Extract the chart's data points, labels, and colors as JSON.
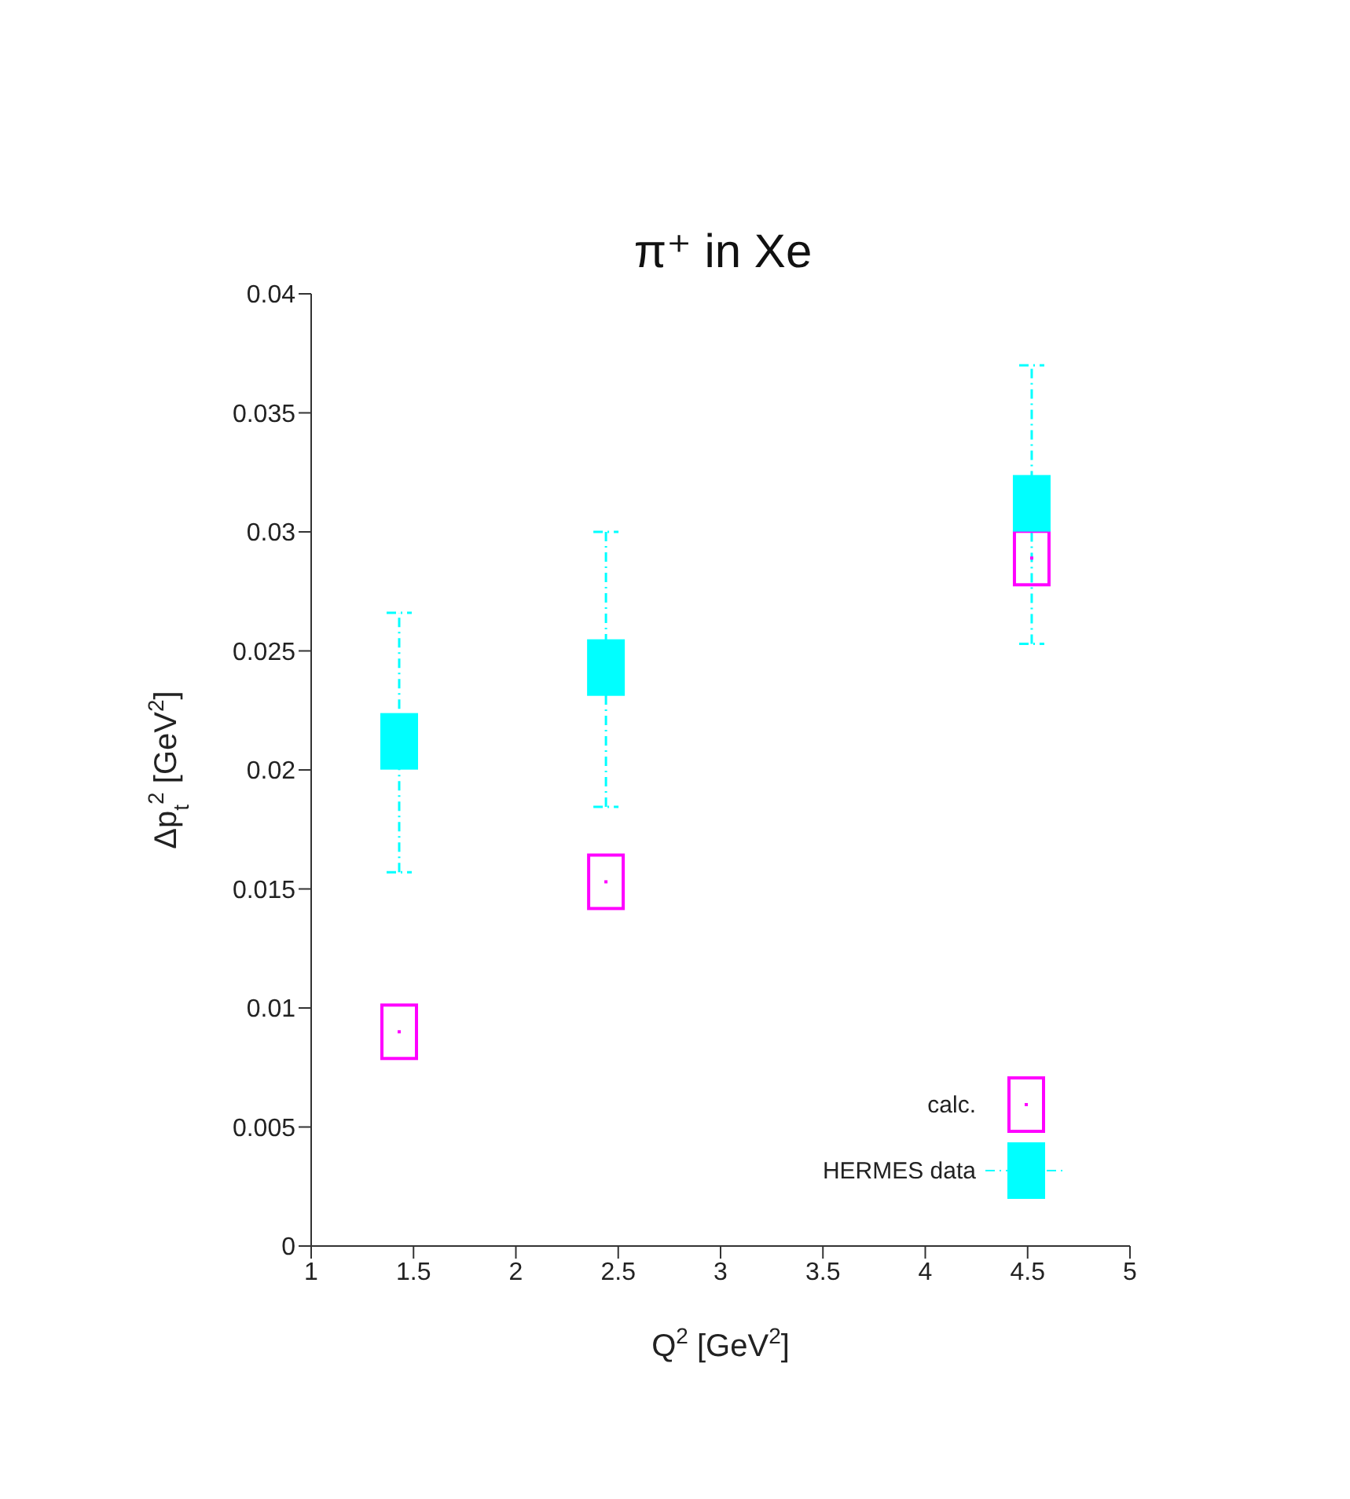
{
  "chart_data": {
    "type": "scatter",
    "title": "π⁺ in Xe",
    "xlabel": "Q$^{2}$ [GeV$^{2}$]",
    "ylabel": "Δp$_{t}$$^{2}$ [GeV$^{2}$]",
    "x": [
      1.43,
      2.44,
      4.52
    ],
    "series": [
      {
        "name": "calc.",
        "color": "#ff00ff",
        "marker": "square",
        "values": [
          0.009,
          0.0153,
          0.0289
        ]
      },
      {
        "name": "HERMES data",
        "color": "#00ffff",
        "marker": "square",
        "values": [
          0.0212,
          0.0243,
          0.0312
        ],
        "errors": [
          [
            0.0157,
            0.0266
          ],
          [
            0.01845,
            0.03
          ],
          [
            0.0253,
            0.037
          ]
        ]
      }
    ],
    "xlim": [
      1,
      5
    ],
    "xticks": [
      1,
      1.5,
      2,
      2.5,
      3,
      3.5,
      4,
      4.5,
      5
    ],
    "ylim": [
      0,
      0.04
    ],
    "yticks": [
      0,
      0.005,
      0.01,
      0.015,
      0.02,
      0.025,
      0.03,
      0.035,
      0.04
    ],
    "grid": false,
    "legend": "bottom right"
  }
}
